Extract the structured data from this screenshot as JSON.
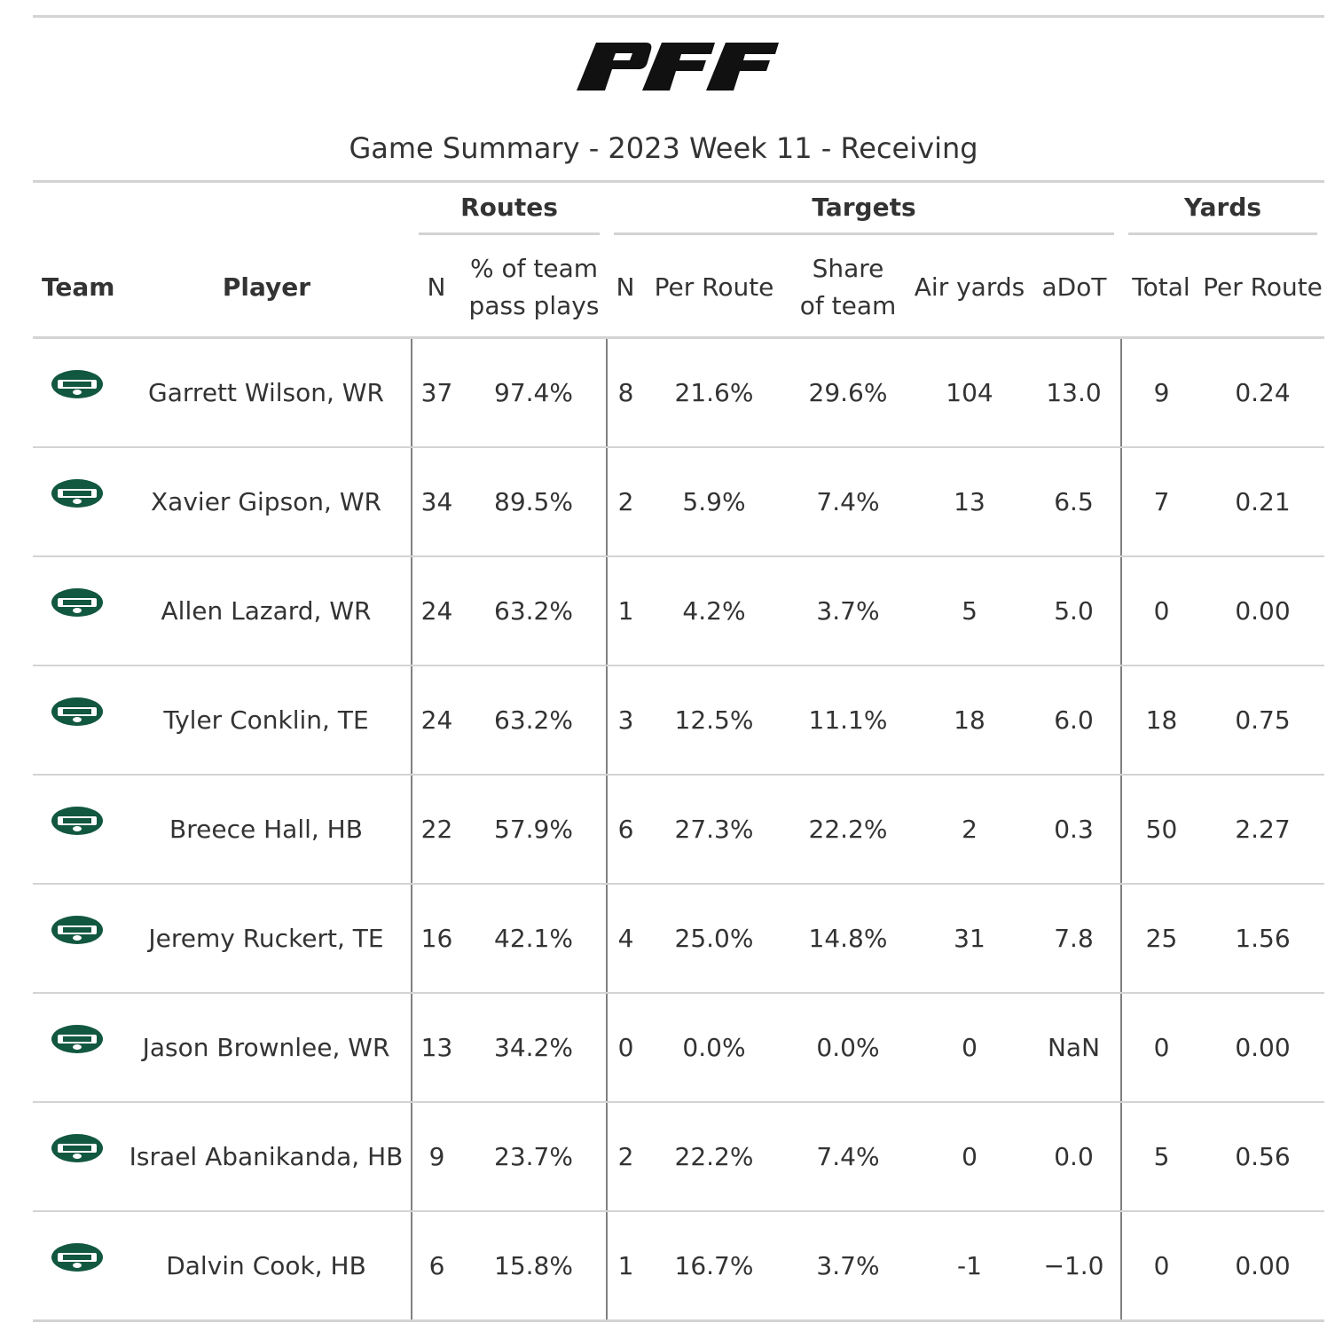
{
  "brand_logo_text": "PFF",
  "chart_data": {
    "type": "table",
    "title": "Game Summary - 2023 Week 11 - Receiving",
    "spanners": [
      "Routes",
      "Targets",
      "Yards"
    ],
    "columns": {
      "team": "Team",
      "player": "Player",
      "routes_n": "N",
      "routes_pct_line1": "% of team",
      "routes_pct_line2": "pass plays",
      "targets_n": "N",
      "targets_per_route": "Per Route",
      "share_line1": "Share",
      "share_line2": "of team",
      "air_yards": "Air yards",
      "adot": "aDoT",
      "yards_total": "Total",
      "yards_per_route": "Per Route"
    },
    "team_logo": "new-york-jets",
    "colors": {
      "jets_green": "#125740",
      "rule_gray": "#d3d3d3",
      "divider_gray": "#808080"
    },
    "rows": [
      {
        "player": "Garrett Wilson, WR",
        "routes": "37",
        "pct_pass": "97.4%",
        "targets": "8",
        "t_per_route": "21.6%",
        "share": "29.6%",
        "air_yards": "104",
        "adot": "13.0",
        "yards": "9",
        "y_per_route": "0.24"
      },
      {
        "player": "Xavier Gipson, WR",
        "routes": "34",
        "pct_pass": "89.5%",
        "targets": "2",
        "t_per_route": "5.9%",
        "share": "7.4%",
        "air_yards": "13",
        "adot": "6.5",
        "yards": "7",
        "y_per_route": "0.21"
      },
      {
        "player": "Allen Lazard, WR",
        "routes": "24",
        "pct_pass": "63.2%",
        "targets": "1",
        "t_per_route": "4.2%",
        "share": "3.7%",
        "air_yards": "5",
        "adot": "5.0",
        "yards": "0",
        "y_per_route": "0.00"
      },
      {
        "player": "Tyler Conklin, TE",
        "routes": "24",
        "pct_pass": "63.2%",
        "targets": "3",
        "t_per_route": "12.5%",
        "share": "11.1%",
        "air_yards": "18",
        "adot": "6.0",
        "yards": "18",
        "y_per_route": "0.75"
      },
      {
        "player": "Breece Hall, HB",
        "routes": "22",
        "pct_pass": "57.9%",
        "targets": "6",
        "t_per_route": "27.3%",
        "share": "22.2%",
        "air_yards": "2",
        "adot": "0.3",
        "yards": "50",
        "y_per_route": "2.27"
      },
      {
        "player": "Jeremy Ruckert, TE",
        "routes": "16",
        "pct_pass": "42.1%",
        "targets": "4",
        "t_per_route": "25.0%",
        "share": "14.8%",
        "air_yards": "31",
        "adot": "7.8",
        "yards": "25",
        "y_per_route": "1.56"
      },
      {
        "player": "Jason Brownlee, WR",
        "routes": "13",
        "pct_pass": "34.2%",
        "targets": "0",
        "t_per_route": "0.0%",
        "share": "0.0%",
        "air_yards": "0",
        "adot": "NaN",
        "yards": "0",
        "y_per_route": "0.00"
      },
      {
        "player": "Israel Abanikanda, HB",
        "routes": "9",
        "pct_pass": "23.7%",
        "targets": "2",
        "t_per_route": "22.2%",
        "share": "7.4%",
        "air_yards": "0",
        "adot": "0.0",
        "yards": "5",
        "y_per_route": "0.56"
      },
      {
        "player": "Dalvin Cook, HB",
        "routes": "6",
        "pct_pass": "15.8%",
        "targets": "1",
        "t_per_route": "16.7%",
        "share": "3.7%",
        "air_yards": "-1",
        "adot": "−1.0",
        "yards": "0",
        "y_per_route": "0.00"
      }
    ]
  }
}
